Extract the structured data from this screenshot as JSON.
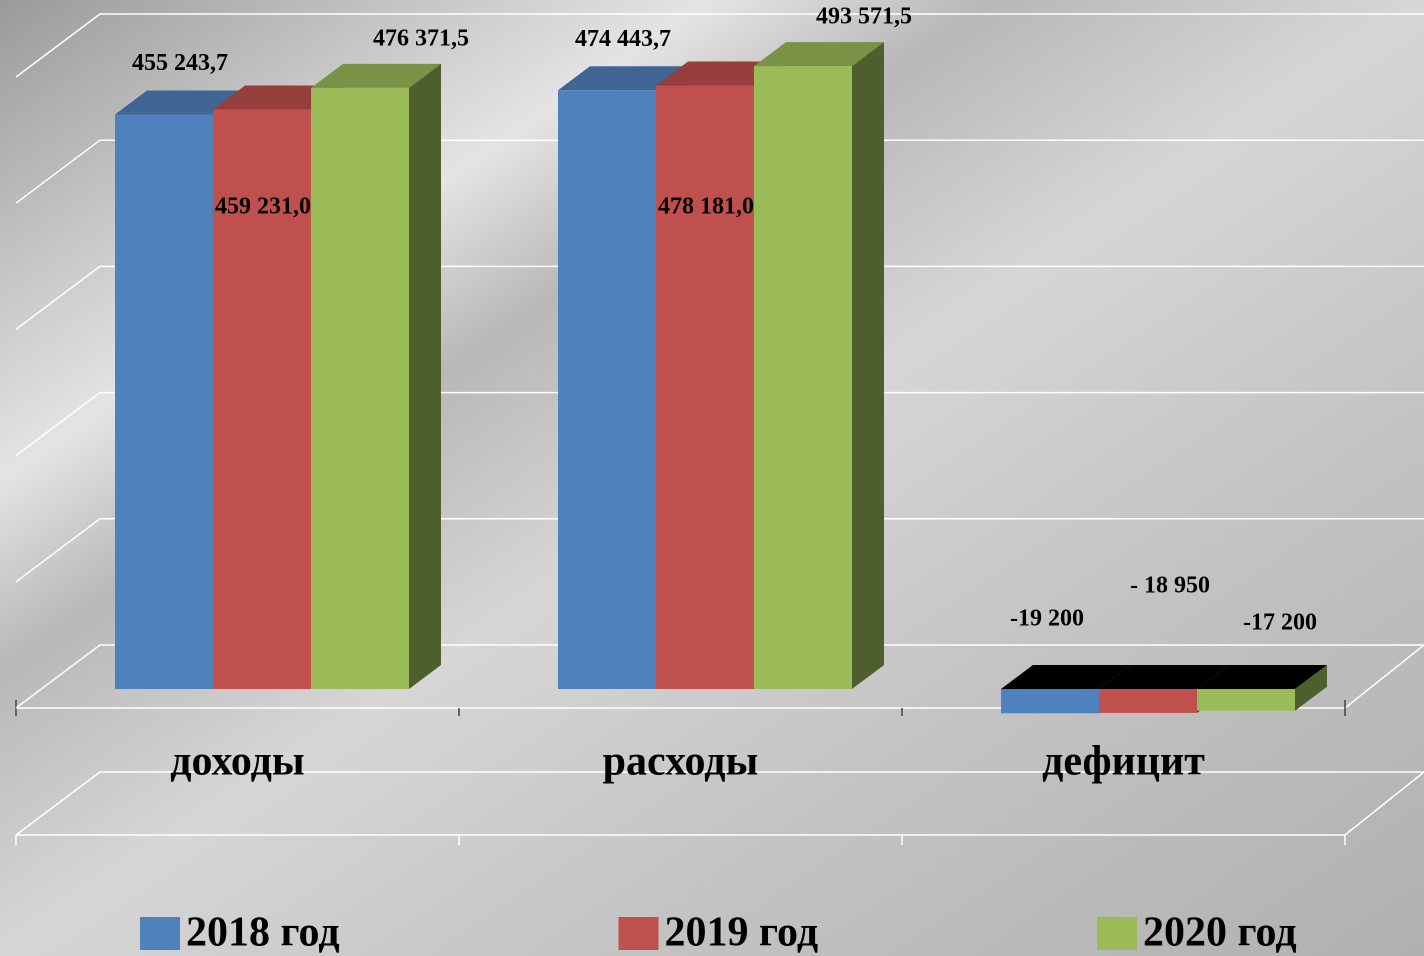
{
  "chart_data": {
    "type": "bar3d",
    "categories": [
      "доходы",
      "расходы",
      "дефицит"
    ],
    "series": [
      {
        "name": "2018 год",
        "color": "#4f81bd",
        "values": [
          455243.7,
          474443.7,
          -19200
        ],
        "value_labels": [
          "455 243,7",
          "474 443,7",
          "-19 200"
        ]
      },
      {
        "name": "2019 год",
        "color": "#c0504d",
        "values": [
          459231.0,
          478181.0,
          -18950
        ],
        "value_labels": [
          "459 231,0",
          "478 181,0",
          "- 18 950"
        ]
      },
      {
        "name": "2020 год",
        "color": "#9bbb59",
        "values": [
          476371.5,
          493571.5,
          -17200
        ],
        "value_labels": [
          "476 371,5",
          "493 571,5",
          "-17 200"
        ]
      }
    ],
    "ylim": [
      0,
      500000
    ],
    "yticks": [
      0,
      100000,
      200000,
      300000,
      400000,
      500000
    ],
    "grid": true
  }
}
